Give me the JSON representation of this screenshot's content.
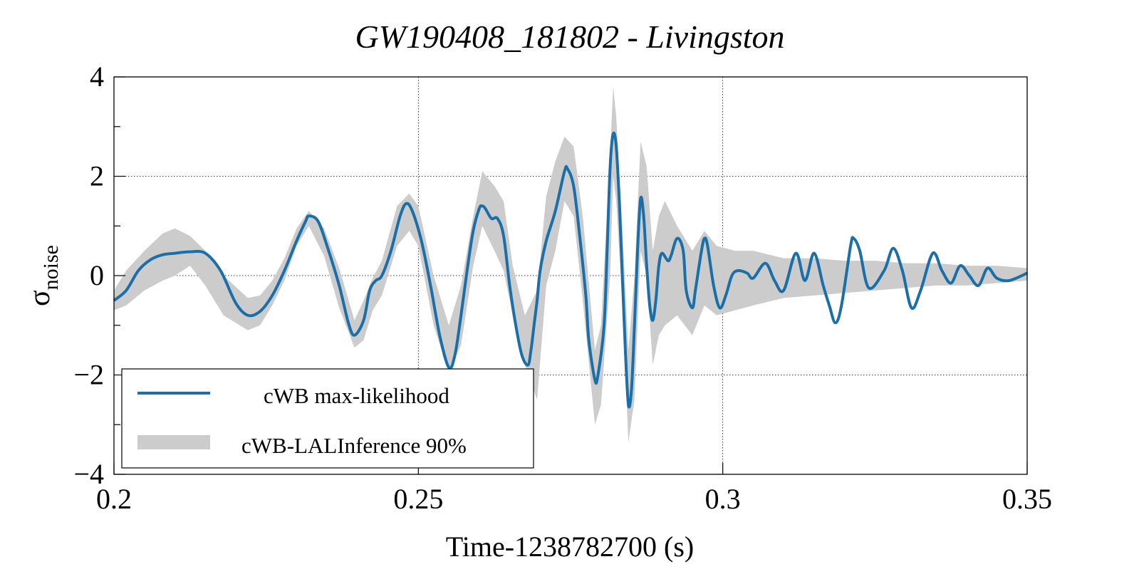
{
  "chart_data": {
    "type": "line",
    "title": "GW190408_181802 - Livingston",
    "xlabel": "Time-1238782700 (s)",
    "ylabel": {
      "main": "σ",
      "sub": "noise"
    },
    "xlim": [
      0.2,
      0.35
    ],
    "ylim": [
      -4,
      4
    ],
    "xticks": [
      0.2,
      0.25,
      0.3,
      0.35
    ],
    "xtick_labels": [
      "0.2",
      "0.25",
      "0.3",
      "0.35"
    ],
    "yticks": [
      -4,
      -2,
      0,
      2,
      4
    ],
    "ytick_labels": [
      "−4",
      "−2",
      "0",
      "2",
      "4"
    ],
    "grid": true,
    "legend": {
      "placement": "bottom-left",
      "entries": [
        {
          "label": "cWB max-likelihood",
          "kind": "line",
          "color": "#1a6fa8"
        },
        {
          "label": "cWB-LALInference 90%",
          "kind": "band",
          "color": "#cccccc"
        }
      ]
    },
    "series": [
      {
        "name": "cWB max-likelihood",
        "color": "#1a6fa8",
        "points": [
          [
            0.2,
            -0.5
          ],
          [
            0.202,
            -0.3
          ],
          [
            0.204,
            0.1
          ],
          [
            0.206,
            0.32
          ],
          [
            0.208,
            0.42
          ],
          [
            0.21,
            0.45
          ],
          [
            0.2125,
            0.48
          ],
          [
            0.215,
            0.45
          ],
          [
            0.2175,
            0.1
          ],
          [
            0.22,
            -0.55
          ],
          [
            0.222,
            -0.8
          ],
          [
            0.224,
            -0.72
          ],
          [
            0.226,
            -0.4
          ],
          [
            0.228,
            0.1
          ],
          [
            0.23,
            0.7
          ],
          [
            0.2315,
            1.1
          ],
          [
            0.232,
            1.2
          ],
          [
            0.2335,
            1.1
          ],
          [
            0.235,
            0.6
          ],
          [
            0.237,
            -0.2
          ],
          [
            0.2385,
            -0.95
          ],
          [
            0.2395,
            -1.2
          ],
          [
            0.241,
            -0.9
          ],
          [
            0.242,
            -0.3
          ],
          [
            0.243,
            -0.1
          ],
          [
            0.244,
            0.0
          ],
          [
            0.2455,
            0.5
          ],
          [
            0.247,
            1.2
          ],
          [
            0.248,
            1.45
          ],
          [
            0.249,
            1.3
          ],
          [
            0.2505,
            0.7
          ],
          [
            0.252,
            -0.2
          ],
          [
            0.2535,
            -1.2
          ],
          [
            0.255,
            -1.85
          ],
          [
            0.256,
            -1.6
          ],
          [
            0.257,
            -0.8
          ],
          [
            0.258,
            0.1
          ],
          [
            0.259,
            0.9
          ],
          [
            0.26,
            1.35
          ],
          [
            0.2605,
            1.4
          ],
          [
            0.261,
            1.35
          ],
          [
            0.262,
            1.15
          ],
          [
            0.263,
            1.15
          ],
          [
            0.264,
            0.8
          ],
          [
            0.265,
            -0.2
          ],
          [
            0.266,
            -1.0
          ],
          [
            0.267,
            -1.6
          ],
          [
            0.268,
            -1.8
          ],
          [
            0.2685,
            -1.5
          ],
          [
            0.269,
            -1.0
          ],
          [
            0.2695,
            -0.5
          ],
          [
            0.27,
            0.1
          ],
          [
            0.271,
            0.7
          ],
          [
            0.2725,
            1.3
          ],
          [
            0.274,
            2.1
          ],
          [
            0.2745,
            2.15
          ],
          [
            0.2755,
            1.8
          ],
          [
            0.2765,
            0.8
          ],
          [
            0.2775,
            -0.4
          ],
          [
            0.278,
            -1.3
          ],
          [
            0.279,
            -2.1
          ],
          [
            0.2795,
            -2.0
          ],
          [
            0.2805,
            -1.0
          ],
          [
            0.281,
            0.5
          ],
          [
            0.2815,
            2.2
          ],
          [
            0.282,
            2.85
          ],
          [
            0.2825,
            2.6
          ],
          [
            0.283,
            1.5
          ],
          [
            0.2835,
            0.0
          ],
          [
            0.284,
            -1.5
          ],
          [
            0.2845,
            -2.6
          ],
          [
            0.285,
            -2.3
          ],
          [
            0.2855,
            -1.0
          ],
          [
            0.286,
            0.5
          ],
          [
            0.2865,
            1.55
          ],
          [
            0.287,
            1.2
          ],
          [
            0.2875,
            0.2
          ],
          [
            0.288,
            -0.6
          ],
          [
            0.2885,
            -0.9
          ],
          [
            0.289,
            -0.5
          ],
          [
            0.2895,
            0.2
          ],
          [
            0.29,
            0.45
          ],
          [
            0.291,
            0.3
          ],
          [
            0.2915,
            0.4
          ],
          [
            0.2925,
            0.75
          ],
          [
            0.2935,
            0.5
          ],
          [
            0.294,
            -0.3
          ],
          [
            0.295,
            -0.65
          ],
          [
            0.2955,
            -0.3
          ],
          [
            0.2965,
            0.5
          ],
          [
            0.297,
            0.75
          ],
          [
            0.2975,
            0.6
          ],
          [
            0.2985,
            -0.2
          ],
          [
            0.2995,
            -0.65
          ],
          [
            0.3005,
            -0.4
          ],
          [
            0.3015,
            0.0
          ],
          [
            0.3025,
            0.1
          ],
          [
            0.304,
            0.05
          ],
          [
            0.305,
            -0.05
          ],
          [
            0.307,
            0.25
          ],
          [
            0.3085,
            -0.1
          ],
          [
            0.31,
            -0.3
          ],
          [
            0.312,
            0.45
          ],
          [
            0.3135,
            -0.1
          ],
          [
            0.315,
            0.45
          ],
          [
            0.3165,
            -0.2
          ],
          [
            0.3175,
            -0.6
          ],
          [
            0.3185,
            -0.95
          ],
          [
            0.3195,
            -0.6
          ],
          [
            0.321,
            0.6
          ],
          [
            0.3215,
            0.75
          ],
          [
            0.3225,
            0.5
          ],
          [
            0.324,
            -0.25
          ],
          [
            0.3265,
            0.1
          ],
          [
            0.328,
            0.55
          ],
          [
            0.3295,
            0.1
          ],
          [
            0.331,
            -0.65
          ],
          [
            0.3325,
            -0.3
          ],
          [
            0.3345,
            0.45
          ],
          [
            0.336,
            0.1
          ],
          [
            0.3375,
            -0.15
          ],
          [
            0.339,
            0.2
          ],
          [
            0.3405,
            0.0
          ],
          [
            0.342,
            -0.2
          ],
          [
            0.3435,
            0.15
          ],
          [
            0.345,
            -0.05
          ],
          [
            0.347,
            -0.1
          ],
          [
            0.35,
            0.05
          ]
        ]
      }
    ],
    "band": {
      "name": "cWB-LALInference 90%",
      "color": "#cccccc",
      "points": [
        [
          0.2,
          -0.7,
          -0.3
        ],
        [
          0.202,
          -0.6,
          0.1
        ],
        [
          0.205,
          -0.3,
          0.5
        ],
        [
          0.208,
          -0.1,
          0.85
        ],
        [
          0.21,
          0.0,
          0.95
        ],
        [
          0.2125,
          0.2,
          0.8
        ],
        [
          0.215,
          -0.2,
          0.5
        ],
        [
          0.218,
          -0.8,
          0.0
        ],
        [
          0.222,
          -1.1,
          -0.45
        ],
        [
          0.224,
          -1.0,
          -0.4
        ],
        [
          0.226,
          -0.6,
          -0.1
        ],
        [
          0.228,
          -0.1,
          0.35
        ],
        [
          0.23,
          0.6,
          0.95
        ],
        [
          0.232,
          1.0,
          1.3
        ],
        [
          0.2345,
          0.4,
          0.95
        ],
        [
          0.237,
          -0.65,
          0.15
        ],
        [
          0.2395,
          -1.45,
          -0.9
        ],
        [
          0.241,
          -1.3,
          -0.5
        ],
        [
          0.2425,
          -0.7,
          -0.05
        ],
        [
          0.244,
          -0.4,
          0.3
        ],
        [
          0.2465,
          0.6,
          1.4
        ],
        [
          0.2485,
          0.9,
          1.65
        ],
        [
          0.25,
          0.6,
          1.4
        ],
        [
          0.2525,
          -1.0,
          0.0
        ],
        [
          0.255,
          -1.95,
          -1.0
        ],
        [
          0.257,
          -1.4,
          -0.2
        ],
        [
          0.259,
          0.2,
          1.2
        ],
        [
          0.2605,
          1.0,
          2.1
        ],
        [
          0.2625,
          0.5,
          1.8
        ],
        [
          0.264,
          0.1,
          1.5
        ],
        [
          0.2655,
          -0.8,
          0.2
        ],
        [
          0.2675,
          -1.8,
          -0.8
        ],
        [
          0.2695,
          -2.5,
          -0.3
        ],
        [
          0.271,
          -0.2,
          1.6
        ],
        [
          0.2725,
          0.5,
          2.3
        ],
        [
          0.274,
          1.5,
          2.8
        ],
        [
          0.2755,
          1.2,
          2.6
        ],
        [
          0.277,
          -0.5,
          1.2
        ],
        [
          0.279,
          -3.0,
          -1.5
        ],
        [
          0.28,
          -2.6,
          -1.0
        ],
        [
          0.2815,
          0.0,
          2.5
        ],
        [
          0.282,
          2.0,
          3.8
        ],
        [
          0.2825,
          1.5,
          3.2
        ],
        [
          0.2835,
          -0.5,
          1.0
        ],
        [
          0.2845,
          -3.35,
          -1.5
        ],
        [
          0.2855,
          -2.5,
          0.0
        ],
        [
          0.2865,
          0.5,
          2.7
        ],
        [
          0.2875,
          0.0,
          2.2
        ],
        [
          0.2885,
          -1.8,
          0.5
        ],
        [
          0.2895,
          -1.2,
          1.2
        ],
        [
          0.2905,
          -1.0,
          1.5
        ],
        [
          0.2925,
          -0.8,
          1.0
        ],
        [
          0.295,
          -1.2,
          0.5
        ],
        [
          0.297,
          -0.6,
          0.9
        ],
        [
          0.299,
          -0.8,
          0.6
        ],
        [
          0.302,
          -0.7,
          0.5
        ],
        [
          0.305,
          -0.6,
          0.5
        ],
        [
          0.31,
          -0.45,
          0.35
        ],
        [
          0.315,
          -0.4,
          0.35
        ],
        [
          0.32,
          -0.35,
          0.3
        ],
        [
          0.325,
          -0.3,
          0.3
        ],
        [
          0.33,
          -0.25,
          0.25
        ],
        [
          0.335,
          -0.2,
          0.25
        ],
        [
          0.34,
          -0.2,
          0.2
        ],
        [
          0.345,
          -0.15,
          0.2
        ],
        [
          0.35,
          -0.1,
          0.15
        ]
      ]
    }
  }
}
